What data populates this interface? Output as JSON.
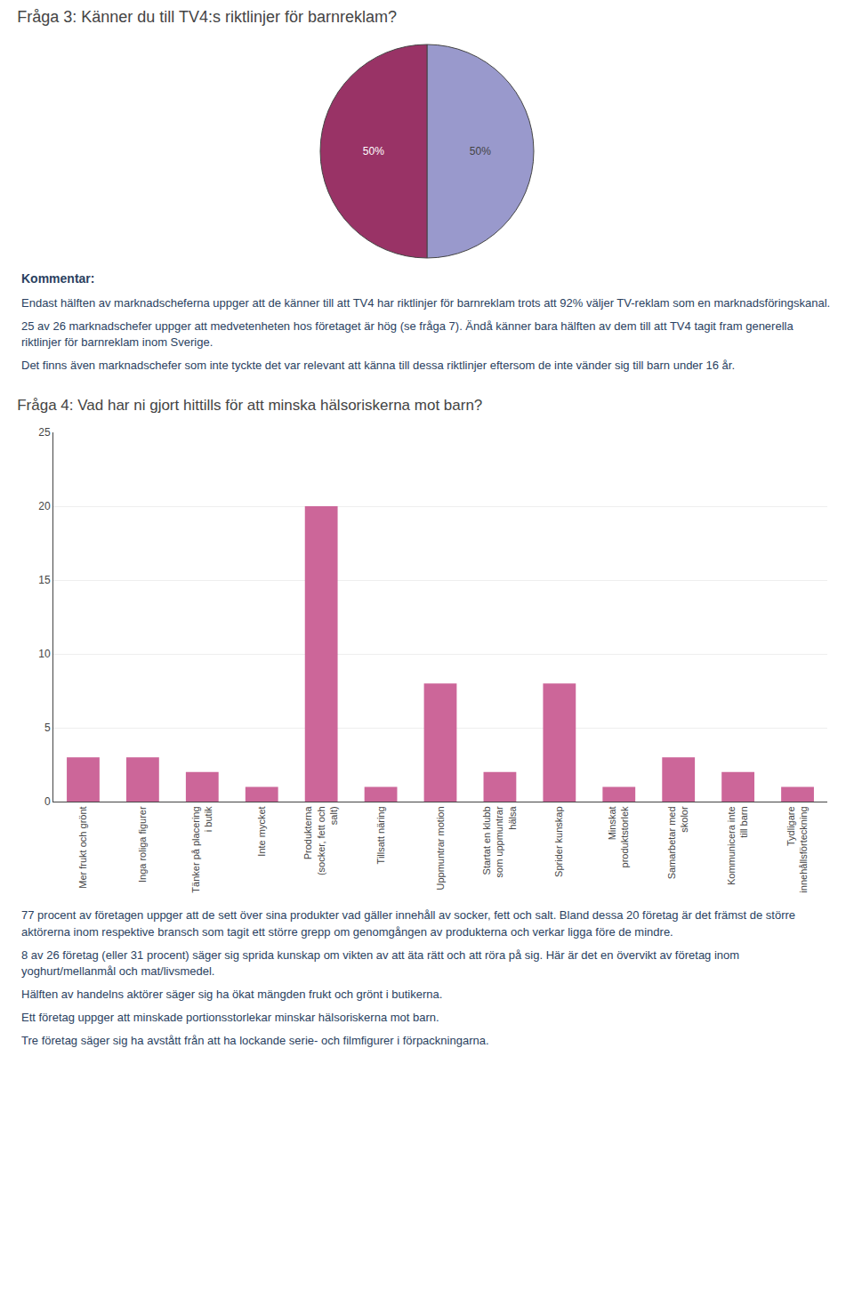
{
  "chart_data": [
    {
      "type": "pie",
      "title": "Fråga 3: Känner du till TV4:s riktlinjer för barnreklam?",
      "values": [
        50,
        50
      ],
      "value_labels": [
        "50%",
        "50%"
      ],
      "data_labels": true,
      "colors": [
        "#9999cc",
        "#993366"
      ],
      "annotations": [
        "Kommentar:",
        "Endast hälften av marknadscheferna uppger att de känner till att TV4 har riktlinjer för barnreklam trots att 92% väljer TV-reklam som en marknadsföringskanal.",
        "25 av 26 marknadschefer uppger att medvetenheten hos företaget är hög (se fråga 7). Ändå känner bara hälften av dem till att TV4 tagit fram generella riktlinjer för barnreklam inom Sverige.",
        "Det finns även marknadschefer som inte tyckte det var relevant att känna till dessa riktlinjer eftersom de inte vänder sig till barn under 16 år."
      ]
    },
    {
      "type": "bar",
      "title": "Fråga 4: Vad har ni gjort hittills för att minska hälsoriskerna mot barn?",
      "categories": [
        "Mer frukt och grönt",
        "Inga roliga figurer",
        "Tänker på placering\ni butik",
        "Inte mycket",
        "Produkterna\n(socker, fett och\nsalt)",
        "Tillsatt näring",
        "Uppmuntrar motion",
        "Startat en klubb\nsom uppmuntrar\nhälsa",
        "Sprider kunskap",
        "Minskat\nproduktstorlek",
        "Samarbetar med\nskolor",
        "Kommunicera inte\ntill barn",
        "Tydligare\ninnehållsförteckning"
      ],
      "values": [
        3,
        3,
        2,
        1,
        20,
        1,
        8,
        2,
        8,
        1,
        3,
        2,
        1
      ],
      "color": "#cc6699",
      "ylim": [
        0,
        25
      ],
      "yticks": [
        0,
        5,
        10,
        15,
        20,
        25
      ],
      "grid": true,
      "annotations": [
        "77 procent av företagen uppger att de sett över sina produkter vad gäller innehåll av socker, fett och salt. Bland dessa 20 företag är det främst de större aktörerna inom respektive bransch som tagit ett större grepp om genomgången av produkterna och verkar ligga före de mindre.",
        "8 av 26 företag (eller 31 procent) säger sig sprida kunskap om vikten av att äta rätt och att röra på sig. Här är det en övervikt av företag inom yoghurt/mellanmål och mat/livsmedel.",
        "Hälften av handelns aktörer säger sig ha ökat mängden frukt och grönt i butikerna.",
        "Ett företag uppger att minskade portionsstorlekar minskar hälsoriskerna mot barn.",
        "Tre företag säger sig ha avstått från att ha lockande serie- och filmfigurer i förpackningarna."
      ]
    }
  ]
}
